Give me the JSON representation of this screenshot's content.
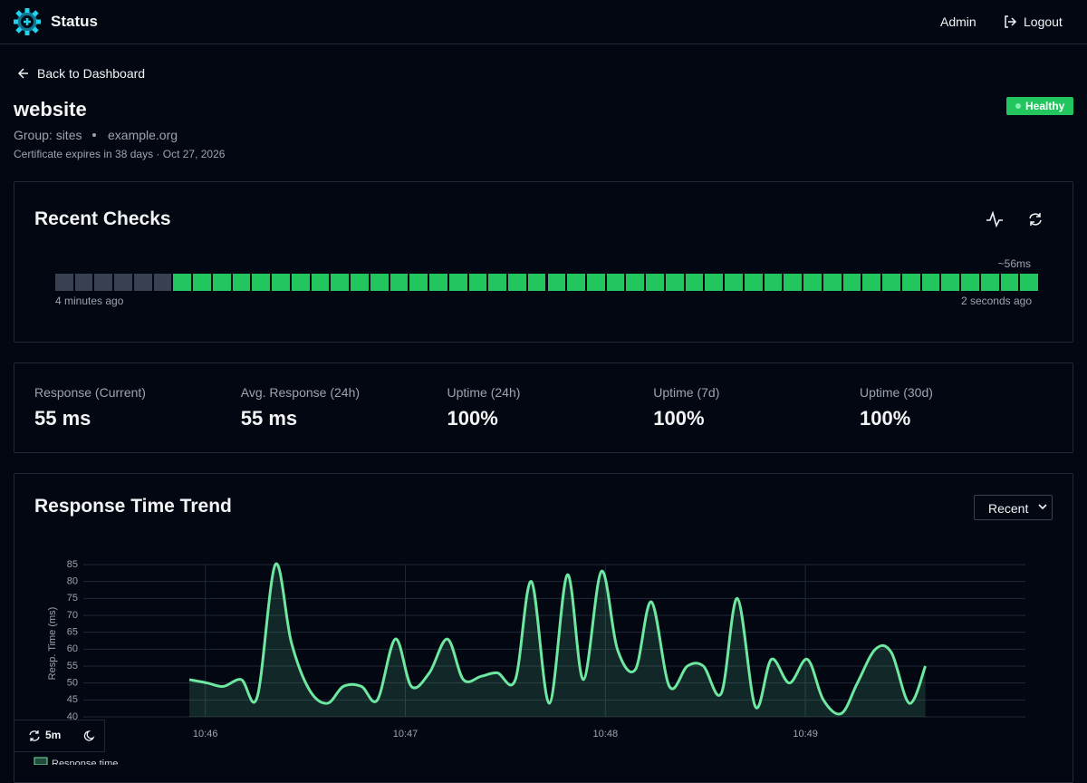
{
  "header": {
    "brand": "Status",
    "user": "Admin",
    "logout": "Logout"
  },
  "back": "Back to Dashboard",
  "monitor": {
    "name": "website",
    "status": "Healthy",
    "group": "Group: sites",
    "host": "example.org",
    "certificate": "Certificate expires in 38 days · Oct 27, 2026"
  },
  "recent_checks": {
    "title": "Recent Checks",
    "latency": "~56ms",
    "start": "4 minutes ago",
    "end": "2 seconds ago",
    "checks": [
      "#374151",
      "#374151",
      "#374151",
      "#374151",
      "#374151",
      "#374151",
      "#22c55e",
      "#22c55e",
      "#22c55e",
      "#22c55e",
      "#22c55e",
      "#22c55e",
      "#22c55e",
      "#22c55e",
      "#22c55e",
      "#22c55e",
      "#22c55e",
      "#22c55e",
      "#22c55e",
      "#22c55e",
      "#22c55e",
      "#22c55e",
      "#22c55e",
      "#22c55e",
      "#22c55e",
      "#22c55e",
      "#22c55e",
      "#22c55e",
      "#22c55e",
      "#22c55e",
      "#22c55e",
      "#22c55e",
      "#22c55e",
      "#22c55e",
      "#22c55e",
      "#22c55e",
      "#22c55e",
      "#22c55e",
      "#22c55e",
      "#22c55e",
      "#22c55e",
      "#22c55e",
      "#22c55e",
      "#22c55e",
      "#22c55e",
      "#22c55e",
      "#22c55e",
      "#22c55e",
      "#22c55e",
      "#22c55e"
    ]
  },
  "stats": [
    {
      "label": "Response (Current)",
      "value": "55 ms"
    },
    {
      "label": "Avg. Response (24h)",
      "value": "55 ms"
    },
    {
      "label": "Uptime (24h)",
      "value": "100%"
    },
    {
      "label": "Uptime (7d)",
      "value": "100%"
    },
    {
      "label": "Uptime (30d)",
      "value": "100%"
    }
  ],
  "controls": {
    "range": "Recent"
  },
  "footer": {
    "refresh": "5m"
  },
  "chart_data": {
    "type": "line",
    "title": "Response Time Trend",
    "ylabel": "Resp. Time (ms)",
    "x": [
      45.92,
      46.01,
      46.09,
      46.18,
      46.26,
      46.35,
      46.43,
      46.52,
      46.61,
      46.69,
      46.78,
      46.86,
      46.95,
      47.03,
      47.12,
      47.21,
      47.29,
      47.38,
      47.46,
      47.55,
      47.63,
      47.72,
      47.81,
      47.89,
      47.98,
      48.06,
      48.15,
      48.23,
      48.32,
      48.41,
      48.49,
      48.58,
      48.66,
      48.75,
      48.83,
      48.92,
      49.01,
      49.09,
      49.18,
      49.26,
      49.35,
      49.43,
      49.52,
      49.6
    ],
    "series": [
      {
        "name": "Response time",
        "color": "#6ee7a0",
        "values": [
          51,
          50,
          49,
          51,
          46,
          85,
          62,
          48,
          44,
          49,
          49,
          45,
          63,
          49,
          53,
          63,
          51,
          52,
          53,
          51,
          80,
          44,
          82,
          51,
          83,
          60,
          54,
          74,
          49,
          55,
          55,
          47,
          75,
          43,
          57,
          50,
          57,
          45,
          41,
          50,
          60,
          59,
          44,
          55
        ]
      }
    ],
    "xlim": [
      45.39,
      50.1
    ],
    "ylim": [
      40,
      85
    ],
    "xticks": [
      {
        "value": 46,
        "label": "10:46"
      },
      {
        "value": 47,
        "label": "10:47"
      },
      {
        "value": 48,
        "label": "10:48"
      },
      {
        "value": 49,
        "label": "10:49"
      }
    ],
    "yticks": [
      40,
      45,
      50,
      55,
      60,
      65,
      70,
      75,
      80,
      85
    ],
    "grid": true
  }
}
